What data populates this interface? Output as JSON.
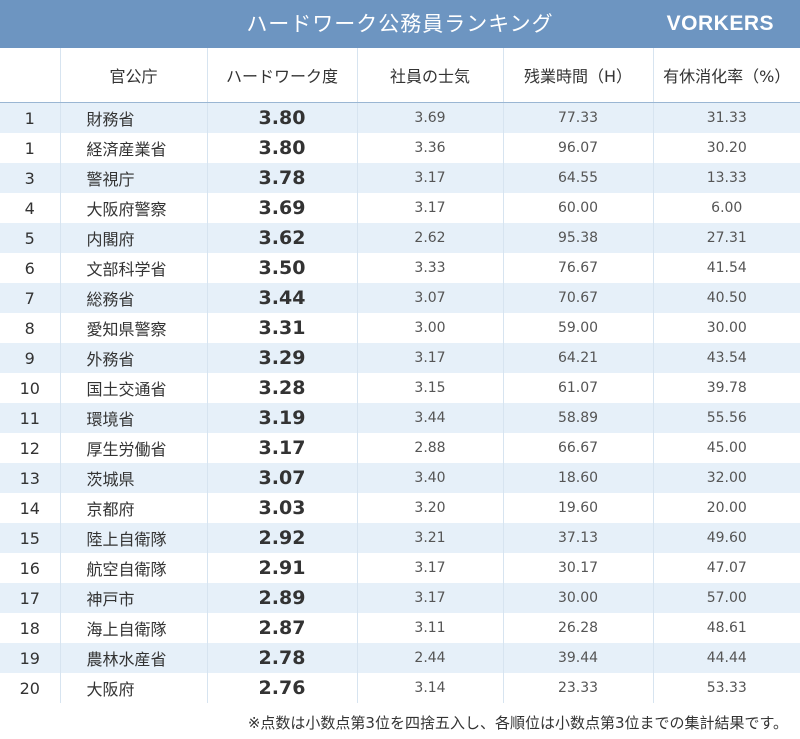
{
  "header": {
    "title": "ハードワーク公務員ランキング",
    "brand": "VORKERS",
    "background_color": "#6d95c1"
  },
  "table": {
    "columns": [
      "",
      "官公庁",
      "ハードワーク度",
      "社員の士気",
      "残業時間（H）",
      "有休消化率（%）"
    ],
    "rows": [
      {
        "rank": "1",
        "name": "財務省",
        "hardwork": "3.80",
        "morale": "3.69",
        "overtime": "77.33",
        "leave": "31.33"
      },
      {
        "rank": "1",
        "name": "経済産業省",
        "hardwork": "3.80",
        "morale": "3.36",
        "overtime": "96.07",
        "leave": "30.20"
      },
      {
        "rank": "3",
        "name": "警視庁",
        "hardwork": "3.78",
        "morale": "3.17",
        "overtime": "64.55",
        "leave": "13.33"
      },
      {
        "rank": "4",
        "name": "大阪府警察",
        "hardwork": "3.69",
        "morale": "3.17",
        "overtime": "60.00",
        "leave": "6.00"
      },
      {
        "rank": "5",
        "name": "内閣府",
        "hardwork": "3.62",
        "morale": "2.62",
        "overtime": "95.38",
        "leave": "27.31"
      },
      {
        "rank": "6",
        "name": "文部科学省",
        "hardwork": "3.50",
        "morale": "3.33",
        "overtime": "76.67",
        "leave": "41.54"
      },
      {
        "rank": "7",
        "name": "総務省",
        "hardwork": "3.44",
        "morale": "3.07",
        "overtime": "70.67",
        "leave": "40.50"
      },
      {
        "rank": "8",
        "name": "愛知県警察",
        "hardwork": "3.31",
        "morale": "3.00",
        "overtime": "59.00",
        "leave": "30.00"
      },
      {
        "rank": "9",
        "name": "外務省",
        "hardwork": "3.29",
        "morale": "3.17",
        "overtime": "64.21",
        "leave": "43.54"
      },
      {
        "rank": "10",
        "name": "国土交通省",
        "hardwork": "3.28",
        "morale": "3.15",
        "overtime": "61.07",
        "leave": "39.78"
      },
      {
        "rank": "11",
        "name": "環境省",
        "hardwork": "3.19",
        "morale": "3.44",
        "overtime": "58.89",
        "leave": "55.56"
      },
      {
        "rank": "12",
        "name": "厚生労働省",
        "hardwork": "3.17",
        "morale": "2.88",
        "overtime": "66.67",
        "leave": "45.00"
      },
      {
        "rank": "13",
        "name": "茨城県",
        "hardwork": "3.07",
        "morale": "3.40",
        "overtime": "18.60",
        "leave": "32.00"
      },
      {
        "rank": "14",
        "name": "京都府",
        "hardwork": "3.03",
        "morale": "3.20",
        "overtime": "19.60",
        "leave": "20.00"
      },
      {
        "rank": "15",
        "name": "陸上自衛隊",
        "hardwork": "2.92",
        "morale": "3.21",
        "overtime": "37.13",
        "leave": "49.60"
      },
      {
        "rank": "16",
        "name": "航空自衛隊",
        "hardwork": "2.91",
        "morale": "3.17",
        "overtime": "30.17",
        "leave": "47.07"
      },
      {
        "rank": "17",
        "name": "神戸市",
        "hardwork": "2.89",
        "morale": "3.17",
        "overtime": "30.00",
        "leave": "57.00"
      },
      {
        "rank": "18",
        "name": "海上自衛隊",
        "hardwork": "2.87",
        "morale": "3.11",
        "overtime": "26.28",
        "leave": "48.61"
      },
      {
        "rank": "19",
        "name": "農林水産省",
        "hardwork": "2.78",
        "morale": "2.44",
        "overtime": "39.44",
        "leave": "44.44"
      },
      {
        "rank": "20",
        "name": "大阪府",
        "hardwork": "2.76",
        "morale": "3.14",
        "overtime": "23.33",
        "leave": "53.33"
      }
    ],
    "stripe_color": "#e6f0f9"
  },
  "footnote": "※点数は小数点第3位を四捨五入し、各順位は小数点第3位までの集計結果です。"
}
